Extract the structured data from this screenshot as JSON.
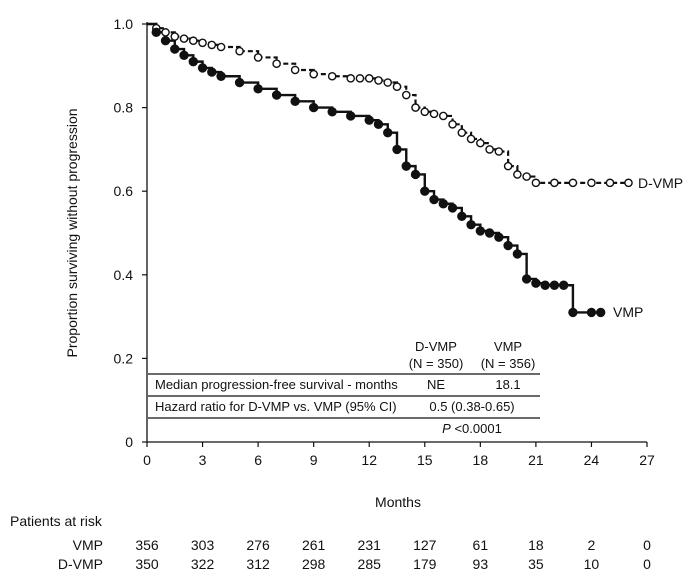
{
  "chart_data": {
    "type": "line",
    "title": "",
    "xlabel": "Months",
    "ylabel": "Proportion surviving without progression",
    "xlim": [
      0,
      27
    ],
    "ylim": [
      0,
      1.0
    ],
    "xticks": [
      0,
      3,
      6,
      9,
      12,
      15,
      18,
      21,
      24,
      27
    ],
    "yticks": [
      "0",
      "0.2",
      "0.4",
      "0.6",
      "0.8",
      "1.0"
    ],
    "yticks_values": [
      0,
      0.2,
      0.4,
      0.6,
      0.8,
      1.0
    ],
    "grid": false,
    "series": [
      {
        "name": "D-VMP",
        "style": "open-circle",
        "color": "#111111",
        "x": [
          0,
          0.5,
          1,
          1.5,
          2,
          2.5,
          3,
          3.5,
          4,
          5,
          6,
          7,
          8,
          9,
          10,
          11,
          11.5,
          12,
          12.5,
          13,
          13.5,
          14,
          14.5,
          15,
          15.5,
          16,
          16.5,
          17,
          17.5,
          18,
          18.5,
          19,
          19.5,
          20,
          20.5,
          21,
          22,
          23,
          24,
          25,
          26
        ],
        "y": [
          1.0,
          0.99,
          0.98,
          0.97,
          0.965,
          0.96,
          0.955,
          0.95,
          0.945,
          0.935,
          0.92,
          0.905,
          0.89,
          0.88,
          0.875,
          0.87,
          0.87,
          0.87,
          0.865,
          0.86,
          0.85,
          0.83,
          0.8,
          0.79,
          0.785,
          0.78,
          0.76,
          0.74,
          0.725,
          0.715,
          0.7,
          0.695,
          0.66,
          0.64,
          0.635,
          0.62,
          0.62,
          0.62,
          0.62,
          0.62,
          0.62
        ]
      },
      {
        "name": "VMP",
        "style": "filled-circle",
        "color": "#111111",
        "x": [
          0,
          0.5,
          1,
          1.5,
          2,
          2.5,
          3,
          3.5,
          4,
          5,
          6,
          7,
          8,
          9,
          10,
          11,
          12,
          12.5,
          13,
          13.5,
          14,
          14.5,
          15,
          15.5,
          16,
          16.5,
          17,
          17.5,
          18,
          18.5,
          19,
          19.5,
          20,
          20.5,
          21,
          21.5,
          22,
          22.5,
          23,
          24,
          24.5
        ],
        "y": [
          1.0,
          0.98,
          0.96,
          0.94,
          0.925,
          0.91,
          0.895,
          0.885,
          0.875,
          0.86,
          0.845,
          0.83,
          0.815,
          0.8,
          0.79,
          0.78,
          0.77,
          0.76,
          0.74,
          0.7,
          0.66,
          0.64,
          0.6,
          0.58,
          0.57,
          0.56,
          0.54,
          0.52,
          0.505,
          0.5,
          0.49,
          0.47,
          0.45,
          0.39,
          0.38,
          0.375,
          0.375,
          0.375,
          0.31,
          0.31,
          0.31
        ]
      }
    ],
    "curve_labels": [
      "D-VMP",
      "VMP"
    ],
    "inset_table": {
      "headers": [
        "",
        "D-VMP\n(N = 350)",
        "VMP\n(N = 356)"
      ],
      "header_lines": [
        [
          "D-VMP",
          "(N = 350)"
        ],
        [
          "VMP",
          "(N = 356)"
        ]
      ],
      "rows": [
        [
          "Median progression-free survival - months",
          "NE",
          "18.1"
        ],
        [
          "Hazard ratio for D-VMP vs. VMP (95% CI)",
          "0.5 (0.38-0.65)",
          ""
        ]
      ],
      "pvalue_prefix": "P",
      "pvalue_rest": " <0.0001"
    },
    "at_risk": {
      "title": "Patients at risk",
      "times": [
        0,
        3,
        6,
        9,
        12,
        15,
        18,
        21,
        24,
        27
      ],
      "rows": [
        {
          "label": "VMP",
          "values": [
            356,
            303,
            276,
            261,
            231,
            127,
            61,
            18,
            2,
            0
          ]
        },
        {
          "label": "D-VMP",
          "values": [
            350,
            322,
            312,
            298,
            285,
            179,
            93,
            35,
            10,
            0
          ]
        }
      ]
    }
  }
}
